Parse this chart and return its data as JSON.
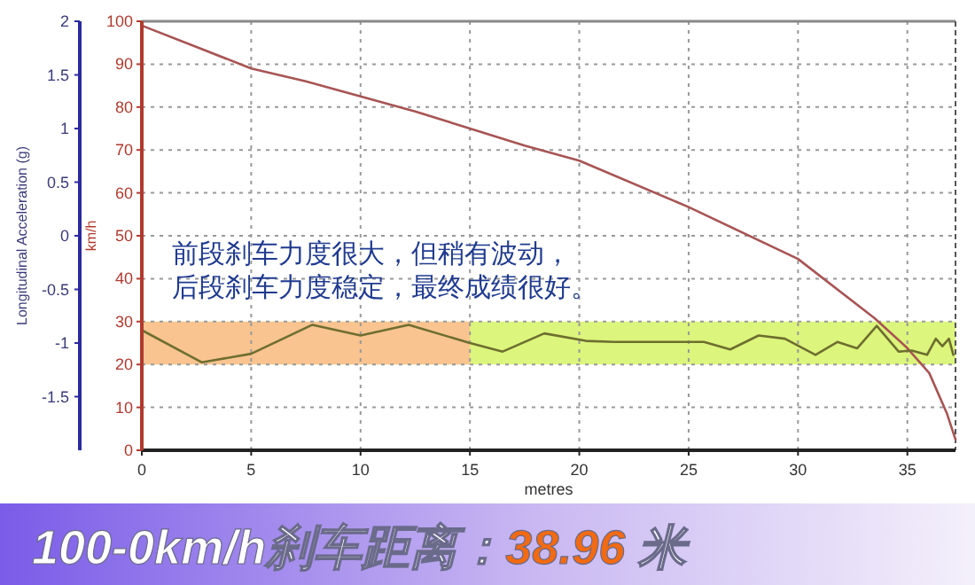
{
  "chart_data": {
    "type": "line",
    "title": "100-0km/h刹车距离：38.96 米",
    "xlabel": "metres",
    "ylabel": "km/h",
    "y2label": "Longitudinal Acceleration (g)",
    "annotations": [
      "前段刹车力度很大，但稍有波动，",
      "后段刹车力度稳定，最终成绩很好。"
    ],
    "xlim": [
      0,
      37.2
    ],
    "xticks": [
      0,
      5,
      10,
      15,
      20,
      25,
      30,
      35
    ],
    "ylim": [
      0,
      100
    ],
    "yticks": [
      0,
      10,
      20,
      30,
      40,
      50,
      60,
      70,
      80,
      90,
      100
    ],
    "y2lim": [
      -2,
      2
    ],
    "y2ticks": [
      -1.5,
      -1,
      -0.5,
      0,
      0.5,
      1,
      1.5,
      2
    ],
    "grid": true,
    "bands": [
      {
        "axis": "y",
        "from": 20,
        "to": 30,
        "color": "#dcf57c"
      },
      {
        "axis": "x",
        "from": 0,
        "to": 15,
        "color": "#f9c490"
      }
    ],
    "series": [
      {
        "color": "#a85454",
        "x": [
          0,
          2.5,
          5,
          7.5,
          10,
          12.5,
          15,
          17.5,
          20,
          25,
          30,
          33.5,
          35,
          36,
          36.8,
          37.2
        ],
        "values": [
          99,
          94,
          89,
          86,
          82.5,
          79,
          75,
          71,
          67.5,
          56.7,
          44.6,
          30.8,
          23.8,
          18,
          8.7,
          2.5
        ]
      },
      {
        "axis": "y2",
        "color": "#6e6e30",
        "x": [
          0,
          2.75,
          5,
          7.8,
          10,
          12.2,
          15,
          16.5,
          18.4,
          20.3,
          21.6,
          25.7,
          26.9,
          28.2,
          29.4,
          30.8,
          31.8,
          32.7,
          33.6,
          34.6,
          35.2,
          35.9,
          36.3,
          36.6,
          36.9,
          37.1
        ],
        "values": [
          -0.88,
          -1.18,
          -1.1,
          -0.83,
          -0.93,
          -0.83,
          -1,
          -1.08,
          -0.91,
          -0.98,
          -0.99,
          -0.99,
          -1.06,
          -0.93,
          -0.96,
          -1.11,
          -0.99,
          -1.05,
          -0.84,
          -1.08,
          -1.07,
          -1.11,
          -0.96,
          -1.03,
          -0.96,
          -1.11
        ]
      }
    ]
  }
}
